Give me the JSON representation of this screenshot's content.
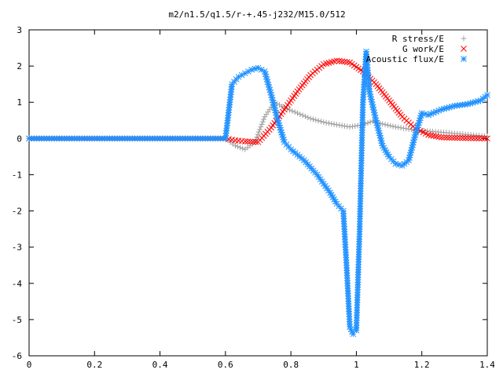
{
  "chart_data": {
    "type": "scatter",
    "title": "m2/n1.5/q1.5/r-+.45-j232/M15.0/512",
    "xlabel": "",
    "ylabel": "",
    "xlim": [
      0,
      1.4
    ],
    "ylim": [
      -6,
      3
    ],
    "x_ticks": [
      "0",
      "0.2",
      "0.4",
      "0.6",
      "0.8",
      "1",
      "1.2",
      "1.4"
    ],
    "y_ticks": [
      "3",
      "2",
      "1",
      "0",
      "-1",
      "-2",
      "-3",
      "-4",
      "-5",
      "-6"
    ],
    "grid": false,
    "legend_position": "top-right",
    "series": [
      {
        "name": "R stress/E",
        "marker": "+",
        "color": "#a0a0a0",
        "x": [
          0.0,
          0.1,
          0.2,
          0.3,
          0.4,
          0.5,
          0.6,
          0.63,
          0.66,
          0.69,
          0.72,
          0.75,
          0.78,
          0.82,
          0.86,
          0.9,
          0.94,
          0.98,
          1.02,
          1.05,
          1.08,
          1.12,
          1.16,
          1.2,
          1.25,
          1.3,
          1.35,
          1.4
        ],
        "y": [
          0,
          0,
          0,
          0,
          0,
          0,
          0,
          -0.2,
          -0.3,
          -0.1,
          0.6,
          1.0,
          0.85,
          0.7,
          0.55,
          0.45,
          0.38,
          0.32,
          0.38,
          0.48,
          0.4,
          0.32,
          0.26,
          0.22,
          0.18,
          0.14,
          0.1,
          0.06
        ]
      },
      {
        "name": "G work/E",
        "marker": "x",
        "color": "#ff0000",
        "x": [
          0.0,
          0.1,
          0.2,
          0.3,
          0.4,
          0.5,
          0.6,
          0.63,
          0.66,
          0.7,
          0.74,
          0.78,
          0.82,
          0.86,
          0.9,
          0.94,
          0.98,
          1.02,
          1.06,
          1.1,
          1.14,
          1.18,
          1.22,
          1.26,
          1.3,
          1.35,
          1.4
        ],
        "y": [
          0,
          0,
          0,
          0,
          0,
          0,
          0,
          -0.05,
          -0.08,
          -0.1,
          0.3,
          0.8,
          1.3,
          1.75,
          2.05,
          2.15,
          2.1,
          1.85,
          1.5,
          1.05,
          0.6,
          0.28,
          0.1,
          0.03,
          0.02,
          0.01,
          0.0
        ]
      },
      {
        "name": "Acoustic flux/E",
        "marker": "*",
        "color": "#1e90ff",
        "x": [
          0.0,
          0.1,
          0.2,
          0.3,
          0.4,
          0.5,
          0.6,
          0.62,
          0.64,
          0.66,
          0.68,
          0.7,
          0.72,
          0.74,
          0.76,
          0.78,
          0.8,
          0.84,
          0.88,
          0.92,
          0.94,
          0.96,
          0.97,
          0.98,
          0.99,
          1.0,
          1.01,
          1.02,
          1.03,
          1.04,
          1.06,
          1.08,
          1.1,
          1.12,
          1.14,
          1.16,
          1.18,
          1.2,
          1.22,
          1.26,
          1.3,
          1.34,
          1.38,
          1.4
        ],
        "y": [
          0,
          0,
          0,
          0,
          0,
          0,
          0,
          1.5,
          1.7,
          1.8,
          1.9,
          1.95,
          1.85,
          1.2,
          0.5,
          -0.1,
          -0.3,
          -0.6,
          -1.0,
          -1.5,
          -1.8,
          -2.0,
          -3.5,
          -5.2,
          -5.4,
          -5.3,
          -2.5,
          1.0,
          2.4,
          1.3,
          0.5,
          -0.2,
          -0.5,
          -0.7,
          -0.75,
          -0.6,
          0.1,
          0.7,
          0.65,
          0.8,
          0.9,
          0.95,
          1.05,
          1.2
        ]
      }
    ]
  }
}
